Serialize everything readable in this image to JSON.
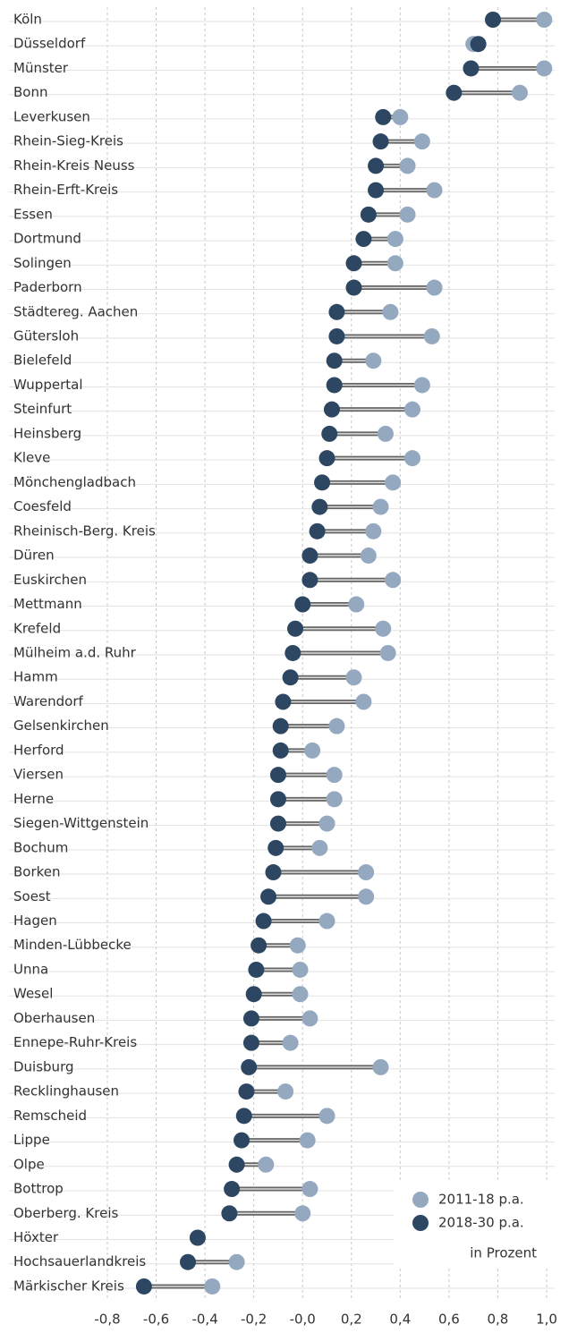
{
  "chart_data": {
    "type": "dumbbell",
    "categories": [
      "Köln",
      "Düsseldorf",
      "Münster",
      "Bonn",
      "Leverkusen",
      "Rhein-Sieg-Kreis",
      "Rhein-Kreis Neuss",
      "Rhein-Erft-Kreis",
      "Essen",
      "Dortmund",
      "Solingen",
      "Paderborn",
      "Städtereg. Aachen",
      "Gütersloh",
      "Bielefeld",
      "Wuppertal",
      "Steinfurt",
      "Heinsberg",
      "Kleve",
      "Mönchengladbach",
      "Coesfeld",
      "Rheinisch-Berg. Kreis",
      "Düren",
      "Euskirchen",
      "Mettmann",
      "Krefeld",
      "Mülheim a.d. Ruhr",
      "Hamm",
      "Warendorf",
      "Gelsenkirchen",
      "Herford",
      "Viersen",
      "Herne",
      "Siegen-Wittgenstein",
      "Bochum",
      "Borken",
      "Soest",
      "Hagen",
      "Minden-Lübbecke",
      "Unna",
      "Wesel",
      "Oberhausen",
      "Ennepe-Ruhr-Kreis",
      "Duisburg",
      "Recklinghausen",
      "Remscheid",
      "Lippe",
      "Olpe",
      "Bottrop",
      "Oberberg. Kreis",
      "Höxter",
      "Hochsauerlandkreis",
      "Märkischer Kreis"
    ],
    "series": [
      {
        "name": "2011-18 p.a.",
        "color": "#94a9bf",
        "values": [
          0.99,
          0.7,
          0.99,
          0.89,
          0.4,
          0.49,
          0.43,
          0.54,
          0.43,
          0.38,
          0.38,
          0.54,
          0.36,
          0.53,
          0.29,
          0.49,
          0.45,
          0.34,
          0.45,
          0.37,
          0.32,
          0.29,
          0.27,
          0.37,
          0.22,
          0.33,
          0.35,
          0.21,
          0.25,
          0.14,
          0.04,
          0.13,
          0.13,
          0.1,
          0.07,
          0.26,
          0.26,
          0.1,
          -0.02,
          -0.01,
          -0.01,
          0.03,
          -0.05,
          0.32,
          -0.07,
          0.1,
          0.02,
          -0.15,
          0.03,
          0.0,
          -0.43,
          -0.27,
          -0.37
        ]
      },
      {
        "name": "2018-30 p.a.",
        "color": "#2d4763",
        "values": [
          0.78,
          0.72,
          0.69,
          0.62,
          0.33,
          0.32,
          0.3,
          0.3,
          0.27,
          0.25,
          0.21,
          0.21,
          0.14,
          0.14,
          0.13,
          0.13,
          0.12,
          0.11,
          0.1,
          0.08,
          0.07,
          0.06,
          0.03,
          0.03,
          0.0,
          -0.03,
          -0.04,
          -0.05,
          -0.08,
          -0.09,
          -0.09,
          -0.1,
          -0.1,
          -0.1,
          -0.11,
          -0.12,
          -0.14,
          -0.16,
          -0.18,
          -0.19,
          -0.2,
          -0.21,
          -0.21,
          -0.22,
          -0.23,
          -0.24,
          -0.25,
          -0.27,
          -0.29,
          -0.3,
          -0.43,
          -0.47,
          -0.65
        ]
      }
    ],
    "unit_note": "in Prozent",
    "xlim": [
      -0.8,
      1.0
    ],
    "xticks": [
      {
        "value": -0.8,
        "label": "-0,8"
      },
      {
        "value": -0.6,
        "label": "-0,6"
      },
      {
        "value": -0.4,
        "label": "-0,4"
      },
      {
        "value": -0.2,
        "label": "-0,2"
      },
      {
        "value": 0,
        "label": "-0,0"
      },
      {
        "value": 0.2,
        "label": "0,2"
      },
      {
        "value": 0.4,
        "label": "0,4"
      },
      {
        "value": 0.6,
        "label": "0,6"
      },
      {
        "value": 0.8,
        "label": "0,8"
      },
      {
        "value": 1.0,
        "label": "1,0"
      }
    ],
    "grid": true,
    "legend": "lower right"
  }
}
